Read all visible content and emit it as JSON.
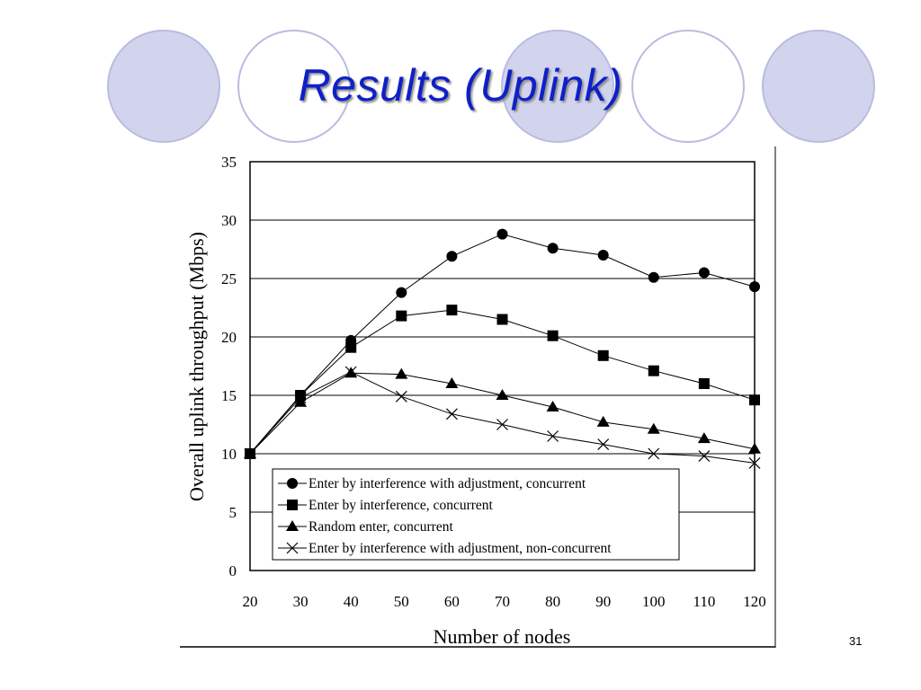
{
  "slide": {
    "title": "Results (Uplink)",
    "page_number": "31"
  },
  "theme": {
    "title_color": "#0f20c8",
    "circle_fill": "#d2d4ee",
    "circle_stroke": "#b9bce0"
  },
  "chart_data": {
    "type": "line",
    "xlabel": "Number of nodes",
    "ylabel": "Overall uplink throughput (Mbps)",
    "xlim": [
      20,
      120
    ],
    "ylim": [
      0,
      35
    ],
    "x_ticks": [
      20,
      30,
      40,
      50,
      60,
      70,
      80,
      90,
      100,
      110,
      120
    ],
    "y_ticks": [
      0,
      5,
      10,
      15,
      20,
      25,
      30,
      35
    ],
    "grid": "horizontal",
    "legend_position": "bottom-center",
    "x": [
      20,
      30,
      40,
      50,
      60,
      70,
      80,
      90,
      100,
      110,
      120
    ],
    "series": [
      {
        "name": "Enter by interference with adjustment, concurrent",
        "marker": "circle",
        "values": [
          10.0,
          15.0,
          19.7,
          23.8,
          26.9,
          28.8,
          27.6,
          27.0,
          25.1,
          25.5,
          24.3
        ]
      },
      {
        "name": "Enter by interference, concurrent",
        "marker": "square",
        "values": [
          10.0,
          15.0,
          19.1,
          21.8,
          22.3,
          21.5,
          20.1,
          18.4,
          17.1,
          16.0,
          14.6
        ]
      },
      {
        "name": "Random enter, concurrent",
        "marker": "triangle",
        "values": [
          10.0,
          14.4,
          16.9,
          16.8,
          16.0,
          15.0,
          14.0,
          12.7,
          12.1,
          11.3,
          10.4
        ]
      },
      {
        "name": "Enter by interference with adjustment, non-concurrent",
        "marker": "cross",
        "values": [
          10.0,
          14.8,
          17.0,
          14.9,
          13.4,
          12.5,
          11.5,
          10.8,
          10.0,
          9.8,
          9.2
        ]
      }
    ]
  }
}
